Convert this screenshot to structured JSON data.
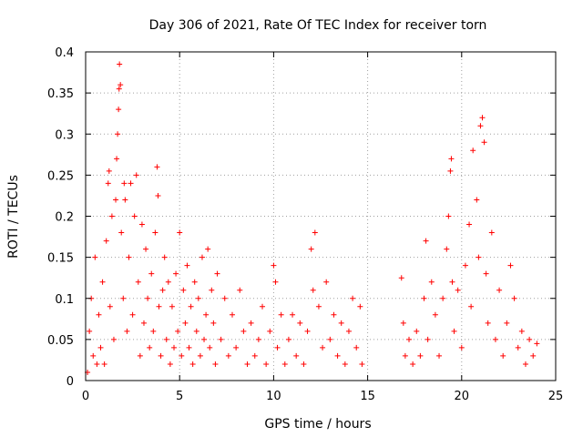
{
  "chart_data": {
    "type": "scatter",
    "title": "Day 306 of 2021, Rate Of TEC Index for receiver torn",
    "xlabel": "GPS time / hours",
    "ylabel": "ROTI / TECUs",
    "xlim": [
      0,
      25
    ],
    "ylim": [
      0,
      0.4
    ],
    "x_ticks": [
      0,
      5,
      10,
      15,
      20,
      25
    ],
    "y_ticks": [
      0,
      0.05,
      0.1,
      0.15,
      0.2,
      0.25,
      0.3,
      0.35,
      0.4
    ],
    "x_tick_labels": [
      "0",
      "5",
      "10",
      "15",
      "20",
      "25"
    ],
    "y_tick_labels": [
      "0",
      "0.05",
      "0.1",
      "0.15",
      "0.2",
      "0.25",
      "0.3",
      "0.35",
      "0.4"
    ],
    "grid": true,
    "marker": "+",
    "color": "#ff0000",
    "series": [
      {
        "points": [
          [
            0.1,
            0.01
          ],
          [
            0.2,
            0.06
          ],
          [
            0.3,
            0.1
          ],
          [
            0.4,
            0.03
          ],
          [
            0.5,
            0.15
          ],
          [
            0.6,
            0.02
          ],
          [
            0.7,
            0.08
          ],
          [
            0.8,
            0.04
          ],
          [
            0.9,
            0.12
          ],
          [
            1.0,
            0.02
          ],
          [
            1.1,
            0.17
          ],
          [
            1.2,
            0.24
          ],
          [
            1.25,
            0.255
          ],
          [
            1.3,
            0.09
          ],
          [
            1.4,
            0.2
          ],
          [
            1.5,
            0.05
          ],
          [
            1.6,
            0.22
          ],
          [
            1.65,
            0.27
          ],
          [
            1.7,
            0.3
          ],
          [
            1.75,
            0.33
          ],
          [
            1.78,
            0.355
          ],
          [
            1.8,
            0.385
          ],
          [
            1.85,
            0.36
          ],
          [
            1.9,
            0.18
          ],
          [
            2.0,
            0.1
          ],
          [
            2.05,
            0.24
          ],
          [
            2.1,
            0.22
          ],
          [
            2.2,
            0.06
          ],
          [
            2.3,
            0.15
          ],
          [
            2.4,
            0.24
          ],
          [
            2.5,
            0.08
          ],
          [
            2.6,
            0.2
          ],
          [
            2.7,
            0.25
          ],
          [
            2.8,
            0.12
          ],
          [
            2.9,
            0.03
          ],
          [
            3.0,
            0.19
          ],
          [
            3.1,
            0.07
          ],
          [
            3.2,
            0.16
          ],
          [
            3.3,
            0.1
          ],
          [
            3.4,
            0.04
          ],
          [
            3.5,
            0.13
          ],
          [
            3.6,
            0.06
          ],
          [
            3.7,
            0.18
          ],
          [
            3.8,
            0.26
          ],
          [
            3.85,
            0.225
          ],
          [
            3.9,
            0.09
          ],
          [
            4.0,
            0.03
          ],
          [
            4.1,
            0.11
          ],
          [
            4.2,
            0.15
          ],
          [
            4.3,
            0.05
          ],
          [
            4.4,
            0.12
          ],
          [
            4.5,
            0.02
          ],
          [
            4.6,
            0.09
          ],
          [
            4.7,
            0.04
          ],
          [
            4.8,
            0.13
          ],
          [
            4.9,
            0.06
          ],
          [
            5.0,
            0.18
          ],
          [
            5.1,
            0.03
          ],
          [
            5.2,
            0.11
          ],
          [
            5.3,
            0.07
          ],
          [
            5.4,
            0.14
          ],
          [
            5.5,
            0.04
          ],
          [
            5.6,
            0.09
          ],
          [
            5.7,
            0.02
          ],
          [
            5.8,
            0.12
          ],
          [
            5.9,
            0.06
          ],
          [
            6.0,
            0.1
          ],
          [
            6.1,
            0.03
          ],
          [
            6.2,
            0.15
          ],
          [
            6.3,
            0.05
          ],
          [
            6.4,
            0.08
          ],
          [
            6.5,
            0.16
          ],
          [
            6.6,
            0.04
          ],
          [
            6.7,
            0.11
          ],
          [
            6.8,
            0.07
          ],
          [
            6.9,
            0.02
          ],
          [
            7.0,
            0.13
          ],
          [
            7.2,
            0.05
          ],
          [
            7.4,
            0.1
          ],
          [
            7.6,
            0.03
          ],
          [
            7.8,
            0.08
          ],
          [
            8.0,
            0.04
          ],
          [
            8.2,
            0.11
          ],
          [
            8.4,
            0.06
          ],
          [
            8.6,
            0.02
          ],
          [
            8.8,
            0.07
          ],
          [
            9.0,
            0.03
          ],
          [
            9.2,
            0.05
          ],
          [
            9.4,
            0.09
          ],
          [
            9.6,
            0.02
          ],
          [
            9.8,
            0.06
          ],
          [
            10.0,
            0.14
          ],
          [
            10.1,
            0.12
          ],
          [
            10.2,
            0.04
          ],
          [
            10.4,
            0.08
          ],
          [
            10.6,
            0.02
          ],
          [
            10.8,
            0.05
          ],
          [
            11.0,
            0.08
          ],
          [
            11.2,
            0.03
          ],
          [
            11.4,
            0.07
          ],
          [
            11.6,
            0.02
          ],
          [
            11.8,
            0.06
          ],
          [
            12.0,
            0.16
          ],
          [
            12.1,
            0.11
          ],
          [
            12.2,
            0.18
          ],
          [
            12.4,
            0.09
          ],
          [
            12.6,
            0.04
          ],
          [
            12.8,
            0.12
          ],
          [
            13.0,
            0.05
          ],
          [
            13.2,
            0.08
          ],
          [
            13.4,
            0.03
          ],
          [
            13.6,
            0.07
          ],
          [
            13.8,
            0.02
          ],
          [
            14.0,
            0.06
          ],
          [
            14.2,
            0.1
          ],
          [
            14.4,
            0.04
          ],
          [
            14.6,
            0.09
          ],
          [
            14.7,
            0.02
          ],
          [
            16.8,
            0.125
          ],
          [
            16.9,
            0.07
          ],
          [
            17.0,
            0.03
          ],
          [
            17.2,
            0.05
          ],
          [
            17.4,
            0.02
          ],
          [
            17.6,
            0.06
          ],
          [
            17.8,
            0.03
          ],
          [
            18.0,
            0.1
          ],
          [
            18.1,
            0.17
          ],
          [
            18.2,
            0.05
          ],
          [
            18.4,
            0.12
          ],
          [
            18.6,
            0.08
          ],
          [
            18.8,
            0.03
          ],
          [
            19.0,
            0.1
          ],
          [
            19.2,
            0.16
          ],
          [
            19.3,
            0.2
          ],
          [
            19.4,
            0.255
          ],
          [
            19.45,
            0.27
          ],
          [
            19.5,
            0.12
          ],
          [
            19.6,
            0.06
          ],
          [
            19.8,
            0.11
          ],
          [
            20.0,
            0.04
          ],
          [
            20.2,
            0.14
          ],
          [
            20.4,
            0.19
          ],
          [
            20.5,
            0.09
          ],
          [
            20.6,
            0.28
          ],
          [
            20.8,
            0.22
          ],
          [
            20.9,
            0.15
          ],
          [
            21.0,
            0.31
          ],
          [
            21.1,
            0.32
          ],
          [
            21.2,
            0.29
          ],
          [
            21.3,
            0.13
          ],
          [
            21.4,
            0.07
          ],
          [
            21.6,
            0.18
          ],
          [
            21.8,
            0.05
          ],
          [
            22.0,
            0.11
          ],
          [
            22.2,
            0.03
          ],
          [
            22.4,
            0.07
          ],
          [
            22.6,
            0.14
          ],
          [
            22.8,
            0.1
          ],
          [
            23.0,
            0.04
          ],
          [
            23.2,
            0.06
          ],
          [
            23.4,
            0.02
          ],
          [
            23.6,
            0.05
          ],
          [
            23.8,
            0.03
          ],
          [
            24.0,
            0.045
          ]
        ]
      }
    ]
  }
}
